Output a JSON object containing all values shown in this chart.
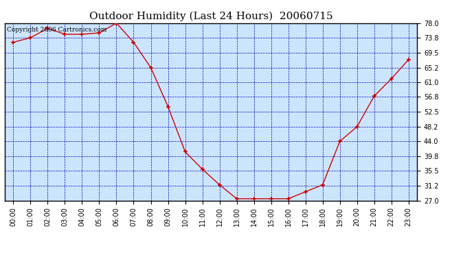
{
  "title": "Outdoor Humidity (Last 24 Hours)  20060715",
  "copyright_text": "Copyright 2006 Cartronics.com",
  "x_labels": [
    "00:00",
    "01:00",
    "02:00",
    "03:00",
    "04:00",
    "05:00",
    "06:00",
    "07:00",
    "08:00",
    "09:00",
    "10:00",
    "11:00",
    "12:00",
    "13:00",
    "14:00",
    "15:00",
    "16:00",
    "17:00",
    "18:00",
    "19:00",
    "20:00",
    "21:00",
    "22:00",
    "23:00"
  ],
  "y_values": [
    72.5,
    73.8,
    76.5,
    74.8,
    74.8,
    75.2,
    78.0,
    72.5,
    65.2,
    54.0,
    41.0,
    36.0,
    31.5,
    27.5,
    27.5,
    27.5,
    27.5,
    29.5,
    31.5,
    44.0,
    48.2,
    57.0,
    62.0,
    67.5
  ],
  "y_ticks": [
    27.0,
    31.2,
    35.5,
    39.8,
    44.0,
    48.2,
    52.5,
    56.8,
    61.0,
    65.2,
    69.5,
    73.8,
    78.0
  ],
  "ylim": [
    27.0,
    78.0
  ],
  "line_color": "#cc0000",
  "marker_color": "#cc0000",
  "bg_color": "#cce5ff",
  "grid_color": "#0000bb",
  "border_color": "#000000",
  "title_fontsize": 11,
  "tick_fontsize": 7,
  "copyright_fontsize": 6.5
}
